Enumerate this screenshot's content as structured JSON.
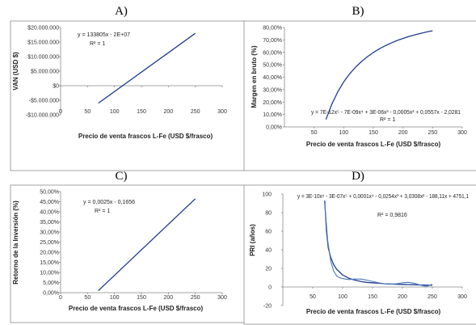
{
  "chart_data": [
    {
      "panel": "A)",
      "type": "line",
      "xlabel": "Precio de venta frascos L-Fe (USD $/frasco)",
      "ylabel": "VAN (USD $)",
      "xlim": [
        0,
        300
      ],
      "ylim": [
        -10000000,
        20000000
      ],
      "x_ticks": [
        "0",
        "50",
        "100",
        "150",
        "200",
        "250",
        "300"
      ],
      "y_ticks": [
        "-$10.000.000",
        "-$5.000.000",
        "$0",
        "$5.000.000",
        "$10.000.000",
        "$15.000.000",
        "$20.000.000"
      ],
      "equation": "y = 133805x - 2E+07",
      "r2": "R² = 1",
      "series": [
        {
          "x": [
            70,
            250
          ],
          "y": [
            -6000000,
            18000000
          ]
        }
      ]
    },
    {
      "panel": "B)",
      "type": "line",
      "xlabel": "Precio de venta frascos L-Fe (USD $/frasco)",
      "ylabel": "Margen en bruto (%)",
      "xlim": [
        0,
        300
      ],
      "ylim": [
        0,
        80
      ],
      "x_ticks": [
        "50",
        "100",
        "150",
        "200",
        "250",
        "300"
      ],
      "y_ticks": [
        "0,00%",
        "10,00%",
        "20,00%",
        "30,00%",
        "40,00%",
        "50,00%",
        "60,00%",
        "70,00%",
        "80,00%"
      ],
      "equation": "y = 7E-12x⁵ - 7E-09x⁴ + 3E-06x³ - 0,0005x² + 0,0557x - 2,0281",
      "r2": "R² = 1",
      "series": [
        {
          "x": [
            70,
            80,
            90,
            100,
            110,
            120,
            130,
            140,
            150,
            160,
            170,
            180,
            190,
            200,
            210,
            220,
            230,
            240,
            250
          ],
          "y": [
            6,
            18.5,
            28.3,
            36.2,
            42.7,
            48.1,
            52.6,
            56.5,
            59.9,
            62.8,
            65.3,
            67.5,
            69.5,
            71.2,
            72.8,
            74.1,
            75.3,
            76.4,
            77.4
          ]
        }
      ]
    },
    {
      "panel": "C)",
      "type": "line",
      "xlabel": "Precio de venta frascos L-Fe (USD $/frasco)",
      "ylabel": "Retorno de la Inversión (%)",
      "xlim": [
        0,
        300
      ],
      "ylim": [
        0,
        50
      ],
      "x_ticks": [
        "0",
        "50",
        "100",
        "150",
        "200",
        "250",
        "300"
      ],
      "y_ticks": [
        "0,00%",
        "5,00%",
        "10,00%",
        "15,00%",
        "20,00%",
        "25,00%",
        "30,00%",
        "35,00%",
        "40,00%",
        "45,00%",
        "50,00%"
      ],
      "equation": "y = 0,0025x - 0,1656",
      "r2": "R² = 1",
      "series": [
        {
          "x": [
            70,
            250
          ],
          "y": [
            1,
            46.5
          ]
        }
      ]
    },
    {
      "panel": "D)",
      "type": "line",
      "xlabel": "Precio de venta frascos L-Fe (USD $/frasco)",
      "ylabel": "PRI (años)",
      "xlim": [
        0,
        300
      ],
      "ylim": [
        -20,
        100
      ],
      "x_ticks": [
        "50",
        "100",
        "150",
        "200",
        "250",
        "300"
      ],
      "y_ticks": [
        "-20",
        "0",
        "20",
        "40",
        "60",
        "80",
        "100"
      ],
      "equation": "y = 3E-10x⁶ - 3E-07x⁵ + 0,0001x⁴ - 0,0254x³ + 3,0308x² - 188,11x + 4751,1",
      "r2": "R² = 0,9816",
      "series": [
        {
          "x": [
            70,
            73,
            76,
            80,
            85,
            90,
            100,
            110,
            120,
            130,
            140,
            150,
            160,
            170,
            180,
            190,
            200,
            210,
            220,
            230,
            240,
            250
          ],
          "y": [
            93,
            60,
            42,
            32,
            24,
            19,
            13,
            9.5,
            7.5,
            6,
            5,
            4.5,
            4,
            3.5,
            3.2,
            3,
            2.8,
            2.6,
            2.4,
            2.2,
            2,
            1.8
          ]
        },
        {
          "x": [
            70,
            75,
            80,
            85,
            90,
            95,
            100,
            110,
            120,
            130,
            140,
            150,
            160,
            170,
            180,
            190,
            200,
            210,
            220,
            230,
            240,
            250
          ],
          "y": [
            90,
            50,
            28,
            17,
            12,
            10,
            9,
            8,
            8.5,
            8.5,
            7.5,
            6,
            4.5,
            3.5,
            3,
            3.5,
            4.5,
            5,
            4,
            2,
            0.5,
            3
          ]
        }
      ]
    }
  ]
}
